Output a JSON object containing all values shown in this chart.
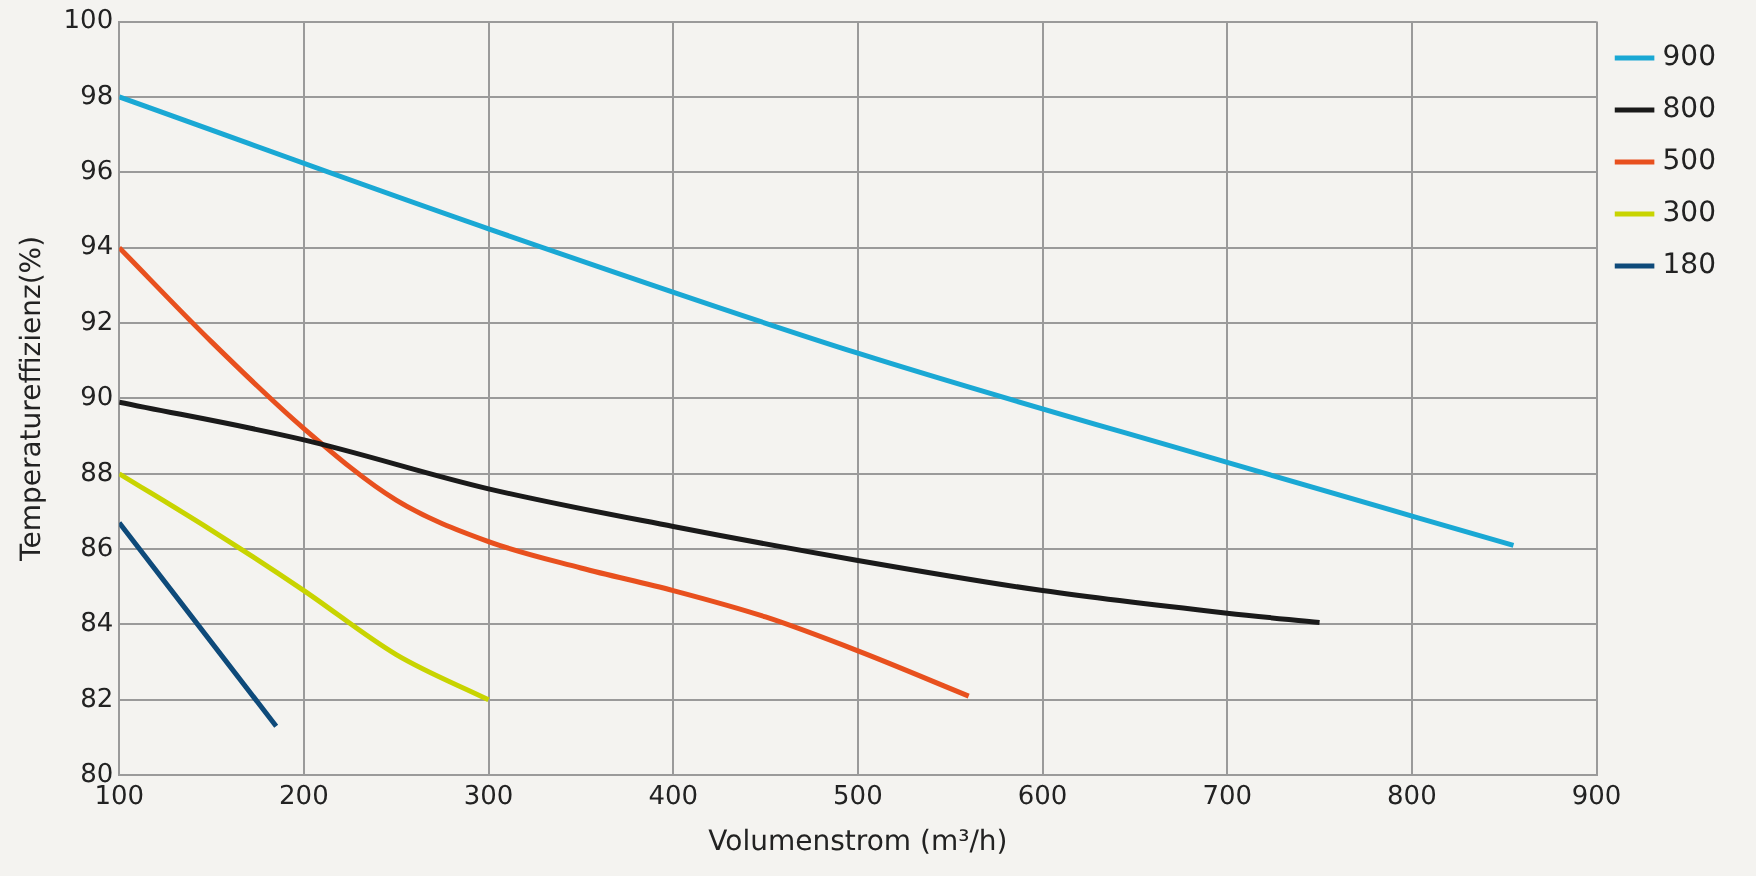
{
  "chart_data": {
    "type": "line",
    "xlabel": "Volumenstrom (m³/h)",
    "ylabel": "Temperatureffizienz(%)",
    "xlim": [
      100,
      900
    ],
    "xticks": [
      100,
      200,
      300,
      400,
      500,
      600,
      700,
      800,
      900
    ],
    "ylim": [
      80,
      100
    ],
    "yticks": [
      80,
      82,
      84,
      86,
      88,
      90,
      92,
      94,
      96,
      98,
      100
    ],
    "grid": true,
    "legend": "top right",
    "marker": "none",
    "line_style": "solid",
    "series": [
      {
        "name": "900",
        "color": "#1aa8d4",
        "x": [
          100,
          300,
          500,
          700,
          855
        ],
        "values": [
          98,
          94.5,
          91.2,
          88.3,
          86.1
        ]
      },
      {
        "name": "800",
        "color": "#1a1a1a",
        "x": [
          100,
          200,
          300,
          400,
          500,
          600,
          700,
          750
        ],
        "values": [
          89.9,
          88.9,
          87.6,
          86.6,
          85.7,
          84.9,
          84.3,
          84.05
        ]
      },
      {
        "name": "500",
        "color": "#e8501e",
        "x": [
          100,
          150,
          200,
          250,
          300,
          350,
          400,
          450,
          500,
          560
        ],
        "values": [
          94,
          91.5,
          89.2,
          87.3,
          86.2,
          85.5,
          84.9,
          84.2,
          83.3,
          82.1
        ]
      },
      {
        "name": "300",
        "color": "#c8d400",
        "x": [
          100,
          150,
          200,
          250,
          300
        ],
        "values": [
          88,
          86.5,
          84.9,
          83.2,
          82
        ]
      },
      {
        "name": "180",
        "color": "#0e4a7a",
        "x": [
          100,
          185
        ],
        "values": [
          86.7,
          81.3
        ]
      }
    ]
  }
}
